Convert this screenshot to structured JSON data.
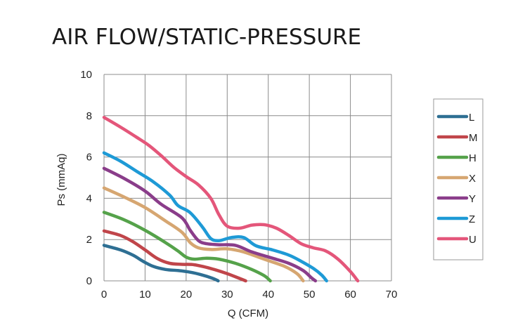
{
  "chart_data": {
    "type": "line",
    "title": "AIR FLOW/STATIC-PRESSURE",
    "xlabel": "Q (CFM)",
    "ylabel": "Ps (mmAq)",
    "xlim": [
      0,
      70
    ],
    "ylim": [
      0,
      10
    ],
    "xticks": [
      0,
      10,
      20,
      30,
      40,
      50,
      60,
      70
    ],
    "yticks": [
      0,
      2,
      4,
      6,
      8,
      10
    ],
    "grid": true,
    "legend_position": "right",
    "series": [
      {
        "name": "L",
        "color": "#2e6f93",
        "points": [
          [
            0,
            1.72
          ],
          [
            4,
            1.5
          ],
          [
            7,
            1.25
          ],
          [
            9.5,
            0.95
          ],
          [
            12,
            0.7
          ],
          [
            15,
            0.55
          ],
          [
            18,
            0.5
          ],
          [
            21,
            0.42
          ],
          [
            24,
            0.28
          ],
          [
            26.5,
            0.12
          ],
          [
            27.8,
            0
          ]
        ]
      },
      {
        "name": "M",
        "color": "#c0454a",
        "points": [
          [
            0,
            2.42
          ],
          [
            4,
            2.2
          ],
          [
            7,
            1.9
          ],
          [
            10,
            1.5
          ],
          [
            13,
            1.08
          ],
          [
            16,
            0.85
          ],
          [
            19,
            0.8
          ],
          [
            22,
            0.78
          ],
          [
            26,
            0.6
          ],
          [
            30,
            0.35
          ],
          [
            33,
            0.12
          ],
          [
            34.5,
            0
          ]
        ]
      },
      {
        "name": "H",
        "color": "#55a24a",
        "points": [
          [
            0,
            3.32
          ],
          [
            5,
            2.95
          ],
          [
            10,
            2.45
          ],
          [
            15,
            1.85
          ],
          [
            18,
            1.45
          ],
          [
            20,
            1.15
          ],
          [
            22,
            1.05
          ],
          [
            25,
            1.1
          ],
          [
            28,
            1.05
          ],
          [
            32,
            0.85
          ],
          [
            36,
            0.55
          ],
          [
            39,
            0.25
          ],
          [
            40.5,
            0
          ]
        ]
      },
      {
        "name": "X",
        "color": "#d6a671",
        "points": [
          [
            0,
            4.5
          ],
          [
            5,
            4.05
          ],
          [
            10,
            3.55
          ],
          [
            15,
            2.9
          ],
          [
            19,
            2.35
          ],
          [
            21,
            1.85
          ],
          [
            23,
            1.6
          ],
          [
            26,
            1.52
          ],
          [
            30,
            1.55
          ],
          [
            34,
            1.4
          ],
          [
            39,
            1.05
          ],
          [
            44,
            0.7
          ],
          [
            47,
            0.35
          ],
          [
            48.5,
            0
          ]
        ]
      },
      {
        "name": "Y",
        "color": "#8a3d8a",
        "points": [
          [
            0,
            5.45
          ],
          [
            5,
            4.95
          ],
          [
            10,
            4.35
          ],
          [
            14,
            3.7
          ],
          [
            19,
            3.05
          ],
          [
            21,
            2.45
          ],
          [
            23,
            1.95
          ],
          [
            25,
            1.8
          ],
          [
            28,
            1.75
          ],
          [
            32,
            1.72
          ],
          [
            36,
            1.4
          ],
          [
            41,
            1.1
          ],
          [
            45,
            0.85
          ],
          [
            48.5,
            0.5
          ],
          [
            50.5,
            0.15
          ],
          [
            51.5,
            0
          ]
        ]
      },
      {
        "name": "Z",
        "color": "#1e9ad6",
        "points": [
          [
            0,
            6.2
          ],
          [
            4,
            5.8
          ],
          [
            8,
            5.3
          ],
          [
            12,
            4.8
          ],
          [
            16,
            4.15
          ],
          [
            18,
            3.65
          ],
          [
            21,
            3.3
          ],
          [
            24,
            2.6
          ],
          [
            26,
            2.05
          ],
          [
            28,
            1.95
          ],
          [
            31,
            2.1
          ],
          [
            34,
            2.1
          ],
          [
            37,
            1.7
          ],
          [
            41,
            1.5
          ],
          [
            45,
            1.25
          ],
          [
            48,
            0.95
          ],
          [
            51,
            0.6
          ],
          [
            53,
            0.28
          ],
          [
            54.2,
            0
          ]
        ]
      },
      {
        "name": "U",
        "color": "#e4567a",
        "points": [
          [
            0,
            7.92
          ],
          [
            4,
            7.45
          ],
          [
            8,
            6.95
          ],
          [
            11,
            6.55
          ],
          [
            14,
            6.05
          ],
          [
            17,
            5.5
          ],
          [
            20,
            5.05
          ],
          [
            23,
            4.65
          ],
          [
            26,
            4.0
          ],
          [
            28,
            3.2
          ],
          [
            30,
            2.65
          ],
          [
            33,
            2.55
          ],
          [
            36,
            2.7
          ],
          [
            39,
            2.72
          ],
          [
            42,
            2.55
          ],
          [
            45,
            2.2
          ],
          [
            48,
            1.8
          ],
          [
            51,
            1.6
          ],
          [
            54,
            1.45
          ],
          [
            57,
            1.05
          ],
          [
            60,
            0.45
          ],
          [
            61.8,
            0
          ]
        ]
      }
    ]
  }
}
